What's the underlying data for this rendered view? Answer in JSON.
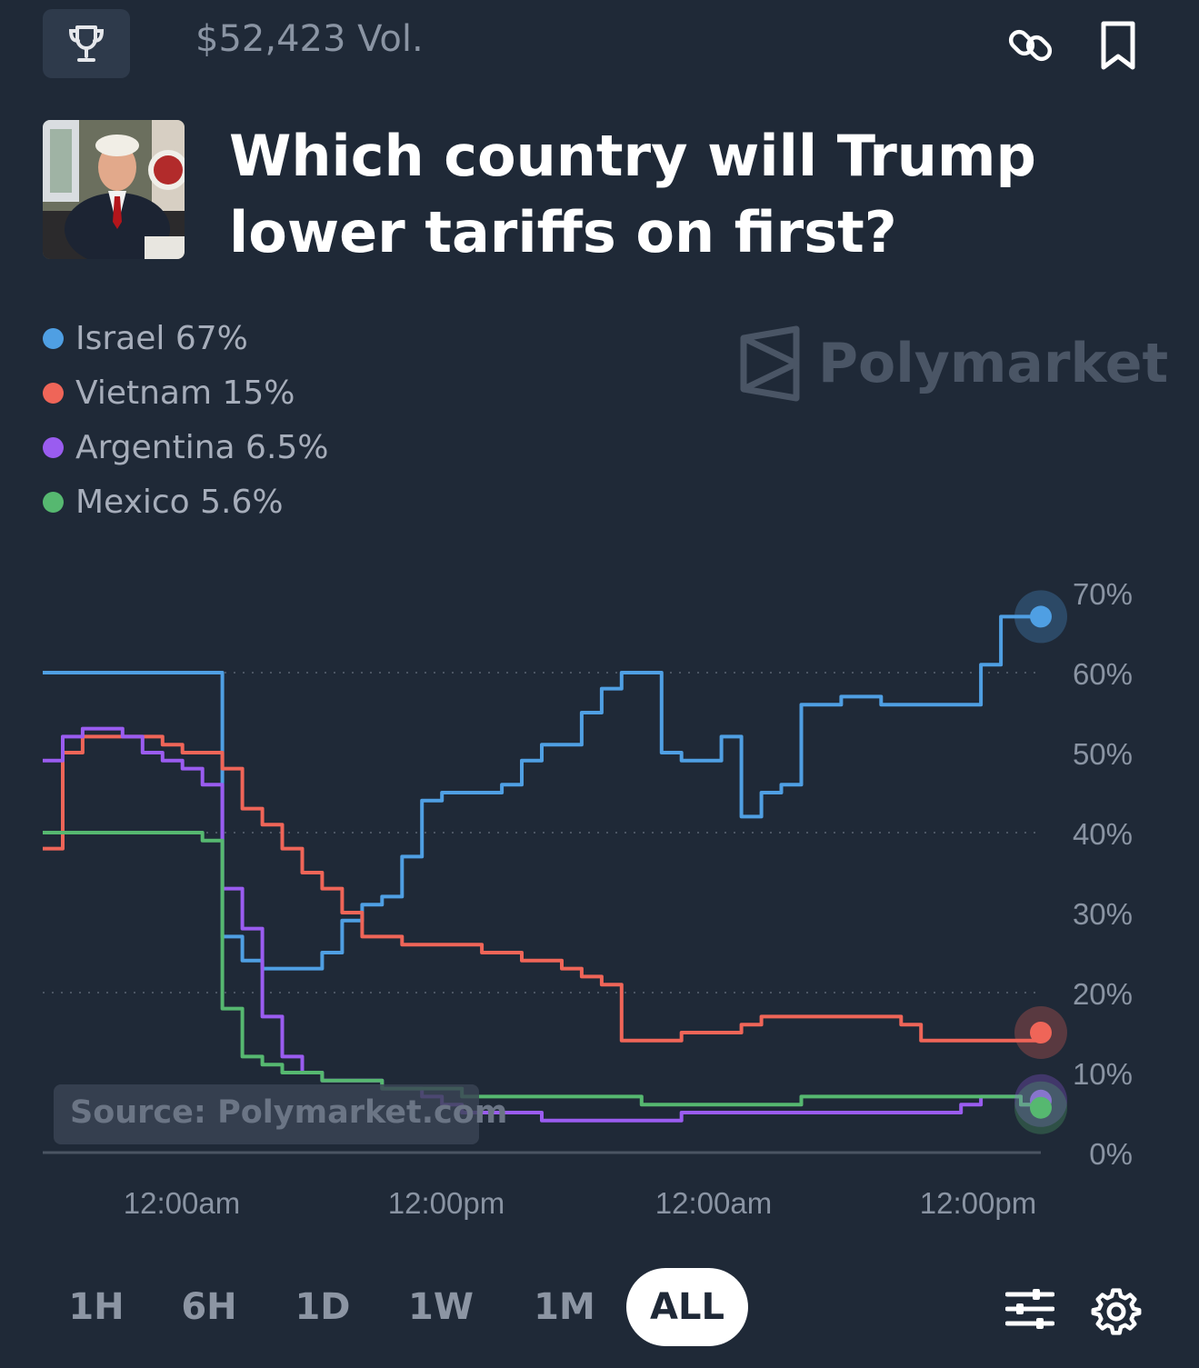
{
  "header": {
    "volume": "$52,423 Vol.",
    "title": "Which country will Trump lower tariffs on first?"
  },
  "legend": [
    {
      "label": "Israel 67%",
      "color": "#4f9fe3"
    },
    {
      "label": "Vietnam 15%",
      "color": "#ef6558"
    },
    {
      "label": "Argentina 6.5%",
      "color": "#9a5cf0"
    },
    {
      "label": "Mexico 5.6%",
      "color": "#56b870"
    }
  ],
  "watermark": "Polymarket",
  "source": "Source: Polymarket.com",
  "ranges": [
    "1H",
    "6H",
    "1D",
    "1W",
    "1M",
    "ALL"
  ],
  "active_range": "ALL",
  "icons": [
    "trophy-icon",
    "link-icon",
    "bookmark-icon",
    "sliders-icon",
    "gear-icon"
  ],
  "chart_data": {
    "type": "line",
    "x_ticks": [
      "12:00am",
      "12:00pm",
      "12:00am",
      "12:00pm"
    ],
    "y_ticks": [
      "0%",
      "10%",
      "20%",
      "30%",
      "40%",
      "50%",
      "60%",
      "70%"
    ],
    "ylim": [
      0,
      70
    ],
    "grid": "dotted at 20%, 40%, 60%",
    "x": [
      0,
      2,
      4,
      6,
      8,
      10,
      12,
      14,
      16,
      18,
      20,
      22,
      24,
      26,
      28,
      30,
      32,
      34,
      36,
      38,
      40,
      42,
      44,
      46,
      48,
      50,
      52,
      54,
      56,
      58,
      60,
      62,
      64,
      66,
      68,
      70,
      72,
      74,
      76,
      78,
      80,
      82,
      84,
      86,
      88,
      90,
      92,
      94,
      96,
      98,
      100
    ],
    "series": [
      {
        "name": "Israel",
        "color": "#4f9fe3",
        "values": [
          60,
          60,
          60,
          60,
          60,
          60,
          60,
          60,
          60,
          27,
          24,
          23,
          23,
          23,
          25,
          29,
          31,
          32,
          37,
          44,
          45,
          45,
          45,
          46,
          49,
          51,
          51,
          55,
          58,
          60,
          60,
          50,
          49,
          49,
          52,
          42,
          45,
          46,
          56,
          56,
          57,
          57,
          56,
          56,
          56,
          56,
          56,
          61,
          67,
          67,
          67
        ]
      },
      {
        "name": "Vietnam",
        "color": "#ef6558",
        "values": [
          38,
          50,
          52,
          52,
          52,
          52,
          51,
          50,
          50,
          48,
          43,
          41,
          38,
          35,
          33,
          30,
          27,
          27,
          26,
          26,
          26,
          26,
          25,
          25,
          24,
          24,
          23,
          22,
          21,
          14,
          14,
          14,
          15,
          15,
          15,
          16,
          17,
          17,
          17,
          17,
          17,
          17,
          17,
          16,
          14,
          14,
          14,
          14,
          14,
          14,
          15
        ]
      },
      {
        "name": "Argentina",
        "color": "#9a5cf0",
        "values": [
          49,
          52,
          53,
          53,
          52,
          50,
          49,
          48,
          46,
          33,
          28,
          17,
          12,
          10,
          9,
          9,
          9,
          8,
          8,
          7,
          6,
          5,
          5,
          5,
          5,
          4,
          4,
          4,
          4,
          4,
          4,
          4,
          5,
          5,
          5,
          5,
          5,
          5,
          5,
          5,
          5,
          5,
          5,
          5,
          5,
          5,
          6,
          7,
          7,
          6,
          6.5
        ]
      },
      {
        "name": "Mexico",
        "color": "#56b870",
        "values": [
          40,
          40,
          40,
          40,
          40,
          40,
          40,
          40,
          39,
          18,
          12,
          11,
          10,
          10,
          9,
          9,
          9,
          8,
          8,
          8,
          8,
          7,
          7,
          7,
          7,
          7,
          7,
          7,
          7,
          7,
          6,
          6,
          6,
          6,
          6,
          6,
          6,
          6,
          7,
          7,
          7,
          7,
          7,
          7,
          7,
          7,
          7,
          7,
          7,
          6,
          5.6
        ]
      }
    ]
  }
}
